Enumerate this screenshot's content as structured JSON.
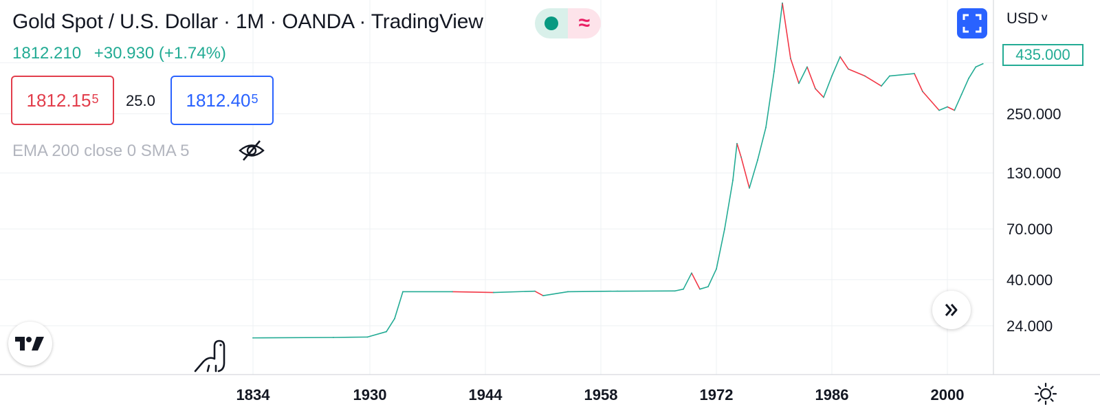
{
  "header": {
    "title": "Gold Spot / U.S. Dollar · 1M · OANDA · TradingView",
    "status_icon": "market-open-dot",
    "wave_icon": "≈",
    "last_price": "1812.210",
    "change": "+30.930 (+1.74%)"
  },
  "trade": {
    "sell_main": "1812.15",
    "sell_sup": "5",
    "spread": "25.0",
    "buy_main": "1812.40",
    "buy_sup": "5"
  },
  "indicator": {
    "label": "EMA 200 close 0 SMA 5",
    "visibility_icon": "eye-off-icon"
  },
  "toolbar": {
    "currency": "USD",
    "currency_chevron": "˅"
  },
  "price_axis": {
    "current_tag": "435.000",
    "ticks": [
      "250.000",
      "130.000",
      "70.000",
      "40.000",
      "24.000"
    ]
  },
  "time_axis": {
    "ticks": [
      "1834",
      "1930",
      "1944",
      "1958",
      "1972",
      "1986",
      "2000"
    ]
  },
  "colors": {
    "up": "#22ab94",
    "down": "#f23645",
    "accent": "#2962ff"
  },
  "chart_data": {
    "type": "line",
    "title": "Gold Spot / U.S. Dollar · 1M · OANDA · TradingView",
    "scale": "log",
    "ylim": [
      14,
      880
    ],
    "grid": true,
    "series": [
      {
        "values_note": "",
        "points": [
          [
            "1834",
            21
          ],
          [
            "1900",
            21.1
          ],
          [
            "1928",
            21.2
          ],
          [
            "1932",
            22.5
          ],
          [
            "1933",
            26
          ],
          [
            "1934",
            35
          ],
          [
            "1940",
            35
          ],
          [
            "1945",
            34.7
          ],
          [
            "1950",
            35.2
          ],
          [
            "1951",
            33.5
          ],
          [
            "1954",
            35
          ],
          [
            "1960",
            35.2
          ],
          [
            "1967",
            35.3
          ],
          [
            "1968",
            36
          ],
          [
            "1969",
            43
          ],
          [
            "1970",
            36
          ],
          [
            "1971",
            37
          ],
          [
            "1972",
            45
          ],
          [
            "1973",
            70
          ],
          [
            "1974",
            120
          ],
          [
            "1974.5",
            180
          ],
          [
            "1975",
            155
          ],
          [
            "1976",
            110
          ],
          [
            "1977",
            150
          ],
          [
            "1978",
            215
          ],
          [
            "1979",
            400
          ],
          [
            "1980",
            850
          ],
          [
            "1981",
            460
          ],
          [
            "1982",
            350
          ],
          [
            "1983",
            420
          ],
          [
            "1984",
            330
          ],
          [
            "1985",
            300
          ],
          [
            "1986",
            380
          ],
          [
            "1987",
            470
          ],
          [
            "1988",
            410
          ],
          [
            "1990",
            380
          ],
          [
            "1992",
            340
          ],
          [
            "1993",
            380
          ],
          [
            "1996",
            390
          ],
          [
            "1997",
            320
          ],
          [
            "1999",
            260
          ],
          [
            "2000",
            270
          ],
          [
            "2001",
            260
          ],
          [
            "2002",
            310
          ],
          [
            "2003",
            370
          ],
          [
            "2004",
            420
          ],
          [
            "2005",
            435
          ]
        ]
      }
    ]
  }
}
